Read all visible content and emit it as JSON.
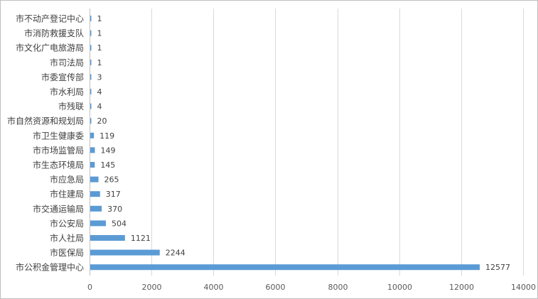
{
  "chart_data": {
    "type": "bar",
    "orientation": "horizontal",
    "categories": [
      "市不动产登记中心",
      "市消防救援支队",
      "市文化广电旅游局",
      "市司法局",
      "市委宣传部",
      "市水利局",
      "市残联",
      "市自然资源和规划局",
      "市卫生健康委",
      "市市场监管局",
      "市生态环境局",
      "市应急局",
      "市住建局",
      "市交通运输局",
      "市公安局",
      "市人社局",
      "市医保局",
      "市公积金管理中心"
    ],
    "values": [
      1,
      1,
      1,
      1,
      3,
      4,
      4,
      20,
      119,
      149,
      145,
      265,
      317,
      370,
      504,
      1121,
      2244,
      12577
    ],
    "xlim": [
      0,
      14000
    ],
    "xticks": [
      0,
      2000,
      4000,
      6000,
      8000,
      10000,
      12000,
      14000
    ],
    "grid": true,
    "legend": "none",
    "bar_color": "#5b9bd5"
  }
}
